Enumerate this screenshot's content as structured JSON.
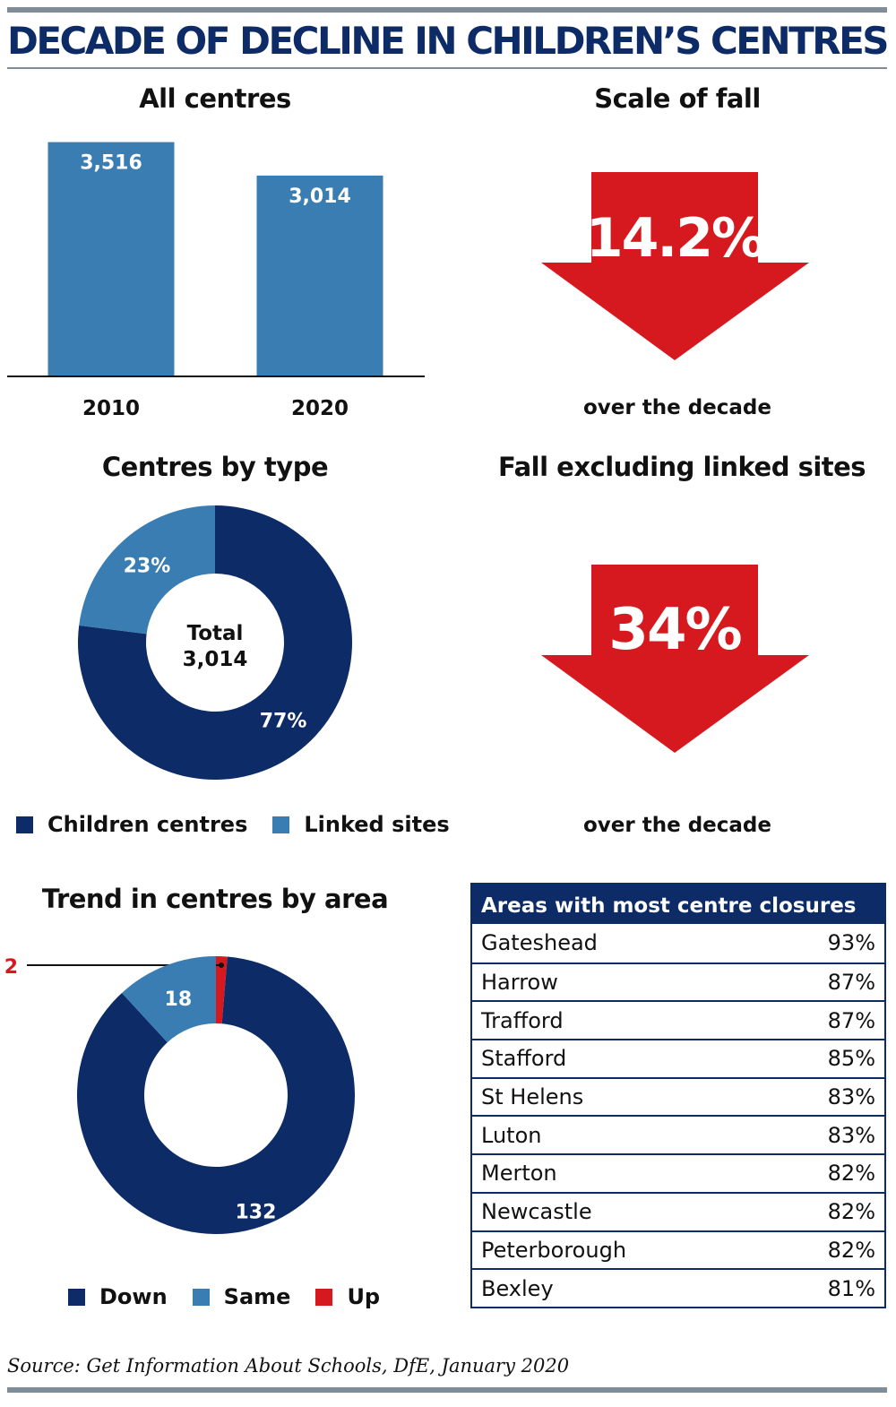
{
  "title": "DECADE OF DECLINE IN CHILDREN’S CENTRES",
  "source": "Source: Get Information About Schools, DfE, January 2020",
  "colors": {
    "navy": "#0d2b66",
    "mid_blue": "#3a7db2",
    "red": "#d6191f",
    "rule_grey": "#7f8d99"
  },
  "chart_data": [
    {
      "id": "all_centres",
      "type": "bar",
      "title": "All centres",
      "categories": [
        "2010",
        "2020"
      ],
      "values": [
        3516,
        3014
      ],
      "data_labels": [
        "3,516",
        "3,014"
      ],
      "ylim": [
        0,
        3900
      ],
      "grid": false
    },
    {
      "id": "scale_of_fall",
      "type": "stat",
      "title": "Scale of fall",
      "value": 14.2,
      "value_label": "14.2%",
      "caption": "over the decade"
    },
    {
      "id": "centres_by_type",
      "type": "pie",
      "title": "Centres by type",
      "center_label": [
        "Total",
        "3,014"
      ],
      "series": [
        {
          "name": "Children centres",
          "value": 77,
          "label": "77%",
          "color": "#0d2b66"
        },
        {
          "name": "Linked sites",
          "value": 23,
          "label": "23%",
          "color": "#3a7db2"
        }
      ],
      "legend": "bottom"
    },
    {
      "id": "fall_excluding_linked",
      "type": "stat",
      "title": "Fall excluding linked sites",
      "value": 34,
      "value_label": "34%",
      "caption": "over the decade"
    },
    {
      "id": "trend_by_area",
      "type": "pie",
      "title": "Trend in centres by area",
      "series": [
        {
          "name": "Up",
          "value": 2,
          "label": "2",
          "color": "#d6191f"
        },
        {
          "name": "Down",
          "value": 132,
          "label": "132",
          "color": "#0d2b66"
        },
        {
          "name": "Same",
          "value": 18,
          "label": "18",
          "color": "#3a7db2"
        }
      ],
      "legend_order": [
        "Down",
        "Same",
        "Up"
      ],
      "legend": "bottom"
    },
    {
      "id": "most_closures",
      "type": "table",
      "title": "Areas with most centre closures",
      "rows": [
        {
          "area": "Gateshead",
          "pct": "93%"
        },
        {
          "area": "Harrow",
          "pct": "87%"
        },
        {
          "area": "Trafford",
          "pct": "87%"
        },
        {
          "area": "Stafford",
          "pct": "85%"
        },
        {
          "area": "St Helens",
          "pct": "83%"
        },
        {
          "area": "Luton",
          "pct": "83%"
        },
        {
          "area": "Merton",
          "pct": "82%"
        },
        {
          "area": "Newcastle",
          "pct": "82%"
        },
        {
          "area": "Peterborough",
          "pct": "82%"
        },
        {
          "area": "Bexley",
          "pct": "81%"
        }
      ]
    }
  ]
}
